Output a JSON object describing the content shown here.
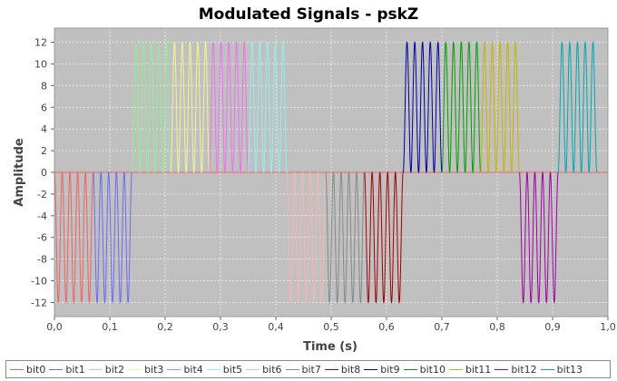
{
  "chart_data": {
    "type": "line",
    "title": "Modulated Signals - pskZ",
    "xlabel": "Time (s)",
    "ylabel": "Amplitude",
    "xlim": [
      0.0,
      1.0
    ],
    "ylim": [
      -13.3,
      13.3
    ],
    "x_ticks": [
      "0,0",
      "0,1",
      "0,2",
      "0,3",
      "0,4",
      "0,5",
      "0,6",
      "0,7",
      "0,8",
      "0,9",
      "1,0"
    ],
    "x_tick_values": [
      0,
      0.1,
      0.2,
      0.3,
      0.4,
      0.5,
      0.6,
      0.7,
      0.8,
      0.9,
      1.0
    ],
    "y_ticks": [
      12,
      10,
      8,
      6,
      4,
      2,
      0,
      -2,
      -4,
      -6,
      -8,
      -10,
      -12
    ],
    "background": "#c0c0c0",
    "grid": true,
    "legend_position": "bottom",
    "bit_duration": 0.07,
    "cycles_per_bit": 5,
    "series": [
      {
        "name": "bit0",
        "color": "#ef6363",
        "bit": 0,
        "amplitude": -12,
        "t_start": 0.0,
        "t_end": 0.07
      },
      {
        "name": "bit1",
        "color": "#6b6bf0",
        "bit": 0,
        "amplitude": -12,
        "t_start": 0.07,
        "t_end": 0.14
      },
      {
        "name": "bit2",
        "color": "#8ef08e",
        "bit": 1,
        "amplitude": 12,
        "t_start": 0.14,
        "t_end": 0.21
      },
      {
        "name": "bit3",
        "color": "#f5f58e",
        "bit": 1,
        "amplitude": 12,
        "t_start": 0.21,
        "t_end": 0.28
      },
      {
        "name": "bit4",
        "color": "#ef70ef",
        "bit": 1,
        "amplitude": 12,
        "t_start": 0.28,
        "t_end": 0.35
      },
      {
        "name": "bit5",
        "color": "#8ef0f0",
        "bit": 1,
        "amplitude": 12,
        "t_start": 0.35,
        "t_end": 0.42
      },
      {
        "name": "bit6",
        "color": "#f5b5b5",
        "bit": 0,
        "amplitude": -12,
        "t_start": 0.42,
        "t_end": 0.49
      },
      {
        "name": "bit7",
        "color": "#888888",
        "bit": 0,
        "amplitude": -12,
        "t_start": 0.49,
        "t_end": 0.56
      },
      {
        "name": "bit8",
        "color": "#a00000",
        "bit": 0,
        "amplitude": -12,
        "t_start": 0.56,
        "t_end": 0.63
      },
      {
        "name": "bit9",
        "color": "#0000a0",
        "bit": 1,
        "amplitude": 12,
        "t_start": 0.63,
        "t_end": 0.7
      },
      {
        "name": "bit10",
        "color": "#00a000",
        "bit": 1,
        "amplitude": 12,
        "t_start": 0.7,
        "t_end": 0.77
      },
      {
        "name": "bit11",
        "color": "#c8b400",
        "bit": 1,
        "amplitude": 12,
        "t_start": 0.77,
        "t_end": 0.84
      },
      {
        "name": "bit12",
        "color": "#a000a0",
        "bit": 0,
        "amplitude": -12,
        "t_start": 0.84,
        "t_end": 0.91
      },
      {
        "name": "bit13",
        "color": "#00a8b4",
        "bit": 1,
        "amplitude": 12,
        "t_start": 0.91,
        "t_end": 0.98
      }
    ]
  }
}
